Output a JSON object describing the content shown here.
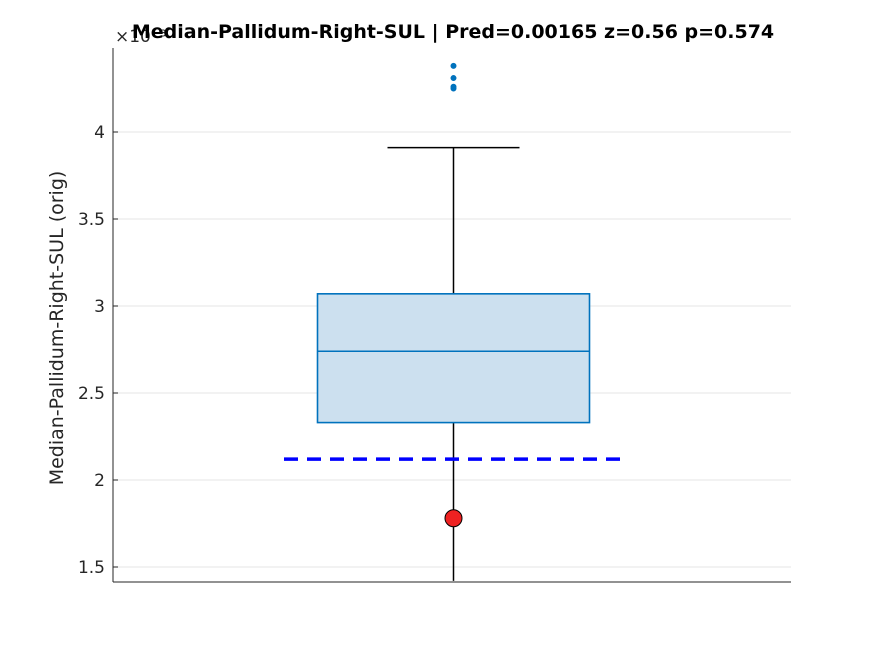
{
  "chart_data": {
    "type": "box",
    "title": "Median-Pallidum-Right-SUL  |  Pred=0.00165  z=0.56  p=0.574",
    "ylabel": "Median-Pallidum-Right-SUL (orig)",
    "xlabel": "",
    "y_exponent_label": "×10⁻³",
    "ylim": [
      1.42,
      4.9
    ],
    "yticks": [
      1.5,
      2,
      2.5,
      3,
      3.5,
      4
    ],
    "ytick_labels": [
      "1.5",
      "2",
      "2.5",
      "3",
      "3.5",
      "4"
    ],
    "grid": true,
    "box": {
      "whisker_low": 1.42,
      "q1": 2.33,
      "median": 2.74,
      "q3": 3.07,
      "whisker_high": 3.91,
      "outliers": [
        4.25,
        4.26,
        4.31,
        4.38
      ]
    },
    "reference_line": {
      "value": 2.12,
      "style": "dashed"
    },
    "marker": {
      "value": 1.78
    },
    "colors": {
      "box_fill": "#cce0ef",
      "box_edge": "#0072bd",
      "whisker": "#000000",
      "outlier": "#0072bd",
      "reference_line": "#0000ff",
      "marker_fill": "#ee2222",
      "grid": "#e6e6e6"
    }
  }
}
